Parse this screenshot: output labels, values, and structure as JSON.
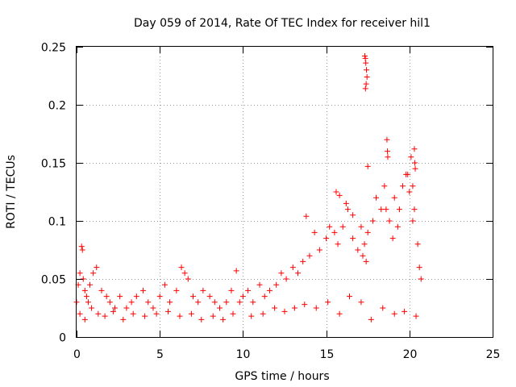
{
  "chart_data": {
    "type": "scatter",
    "title": "Day 059 of 2014, Rate Of TEC Index for receiver hil1",
    "xlabel": "GPS time / hours",
    "ylabel": "ROTI / TECUs",
    "xlim": [
      0,
      25
    ],
    "ylim": [
      0,
      0.25
    ],
    "xticks": [
      0,
      5,
      10,
      15,
      20,
      25
    ],
    "xtick_labels": [
      "0",
      "5",
      "10",
      "15",
      "20",
      "25"
    ],
    "yticks": [
      0,
      0.05,
      0.1,
      0.15,
      0.2,
      0.25
    ],
    "ytick_labels": [
      "0",
      "0.05",
      "0.1",
      "0.15",
      "0.2",
      "0.25"
    ],
    "grid": true,
    "marker": "+",
    "color": "#ff0000",
    "series": [
      {
        "name": "ROTI",
        "x": [
          0.0,
          0.1,
          0.2,
          0.3,
          0.35,
          0.4,
          0.5,
          0.6,
          0.7,
          0.8,
          1.0,
          1.2,
          1.5,
          1.8,
          2.0,
          2.3,
          2.6,
          3.0,
          3.3,
          3.6,
          4.0,
          4.3,
          4.6,
          5.0,
          5.3,
          5.6,
          6.0,
          6.3,
          6.5,
          6.7,
          7.0,
          7.3,
          7.6,
          8.0,
          8.3,
          8.6,
          9.0,
          9.3,
          9.6,
          9.8,
          10.0,
          10.3,
          10.6,
          11.0,
          11.3,
          11.6,
          12.0,
          12.3,
          12.6,
          13.0,
          13.3,
          13.6,
          13.8,
          14.0,
          14.3,
          14.6,
          15.0,
          15.2,
          15.5,
          15.7,
          16.0,
          16.3,
          16.6,
          16.9,
          17.2,
          17.3,
          17.4,
          17.5,
          17.8,
          18.0,
          18.3,
          18.5,
          18.6,
          18.8,
          19.0,
          19.3,
          19.6,
          19.8,
          20.0,
          20.1,
          20.2,
          20.3,
          20.5,
          20.6,
          20.7,
          0.2,
          0.5,
          0.9,
          1.3,
          1.7,
          2.2,
          2.8,
          3.4,
          4.1,
          4.8,
          5.5,
          6.2,
          6.9,
          7.5,
          8.2,
          8.8,
          9.4,
          10.5,
          11.2,
          11.9,
          12.5,
          13.1,
          13.7,
          14.4,
          15.1,
          15.8,
          16.4,
          17.1,
          17.7,
          18.4,
          19.1,
          19.7,
          20.4,
          17.32,
          17.35,
          17.38,
          17.42,
          17.45,
          17.4,
          17.36,
          18.65,
          18.68,
          18.7,
          20.3,
          20.32,
          20.35,
          15.6,
          15.8,
          16.2,
          16.6,
          17.1,
          17.5,
          19.1,
          19.4,
          19.9,
          20.2
        ],
        "y": [
          0.03,
          0.045,
          0.055,
          0.078,
          0.075,
          0.05,
          0.04,
          0.035,
          0.03,
          0.045,
          0.055,
          0.06,
          0.04,
          0.035,
          0.03,
          0.025,
          0.035,
          0.025,
          0.03,
          0.035,
          0.04,
          0.03,
          0.025,
          0.035,
          0.045,
          0.03,
          0.04,
          0.06,
          0.055,
          0.05,
          0.035,
          0.03,
          0.04,
          0.035,
          0.03,
          0.025,
          0.03,
          0.04,
          0.057,
          0.03,
          0.035,
          0.04,
          0.03,
          0.045,
          0.035,
          0.04,
          0.045,
          0.055,
          0.05,
          0.06,
          0.055,
          0.065,
          0.104,
          0.07,
          0.09,
          0.075,
          0.085,
          0.095,
          0.09,
          0.08,
          0.095,
          0.11,
          0.085,
          0.075,
          0.07,
          0.08,
          0.065,
          0.09,
          0.1,
          0.12,
          0.11,
          0.13,
          0.11,
          0.1,
          0.085,
          0.095,
          0.13,
          0.14,
          0.125,
          0.155,
          0.13,
          0.11,
          0.08,
          0.06,
          0.05,
          0.02,
          0.015,
          0.025,
          0.02,
          0.018,
          0.022,
          0.015,
          0.02,
          0.018,
          0.02,
          0.022,
          0.018,
          0.02,
          0.015,
          0.018,
          0.015,
          0.02,
          0.018,
          0.02,
          0.025,
          0.022,
          0.025,
          0.028,
          0.025,
          0.03,
          0.02,
          0.035,
          0.03,
          0.015,
          0.025,
          0.02,
          0.022,
          0.018,
          0.242,
          0.24,
          0.236,
          0.23,
          0.224,
          0.218,
          0.214,
          0.17,
          0.16,
          0.155,
          0.162,
          0.15,
          0.145,
          0.125,
          0.122,
          0.115,
          0.105,
          0.095,
          0.147,
          0.12,
          0.11,
          0.14,
          0.1
        ]
      }
    ]
  }
}
